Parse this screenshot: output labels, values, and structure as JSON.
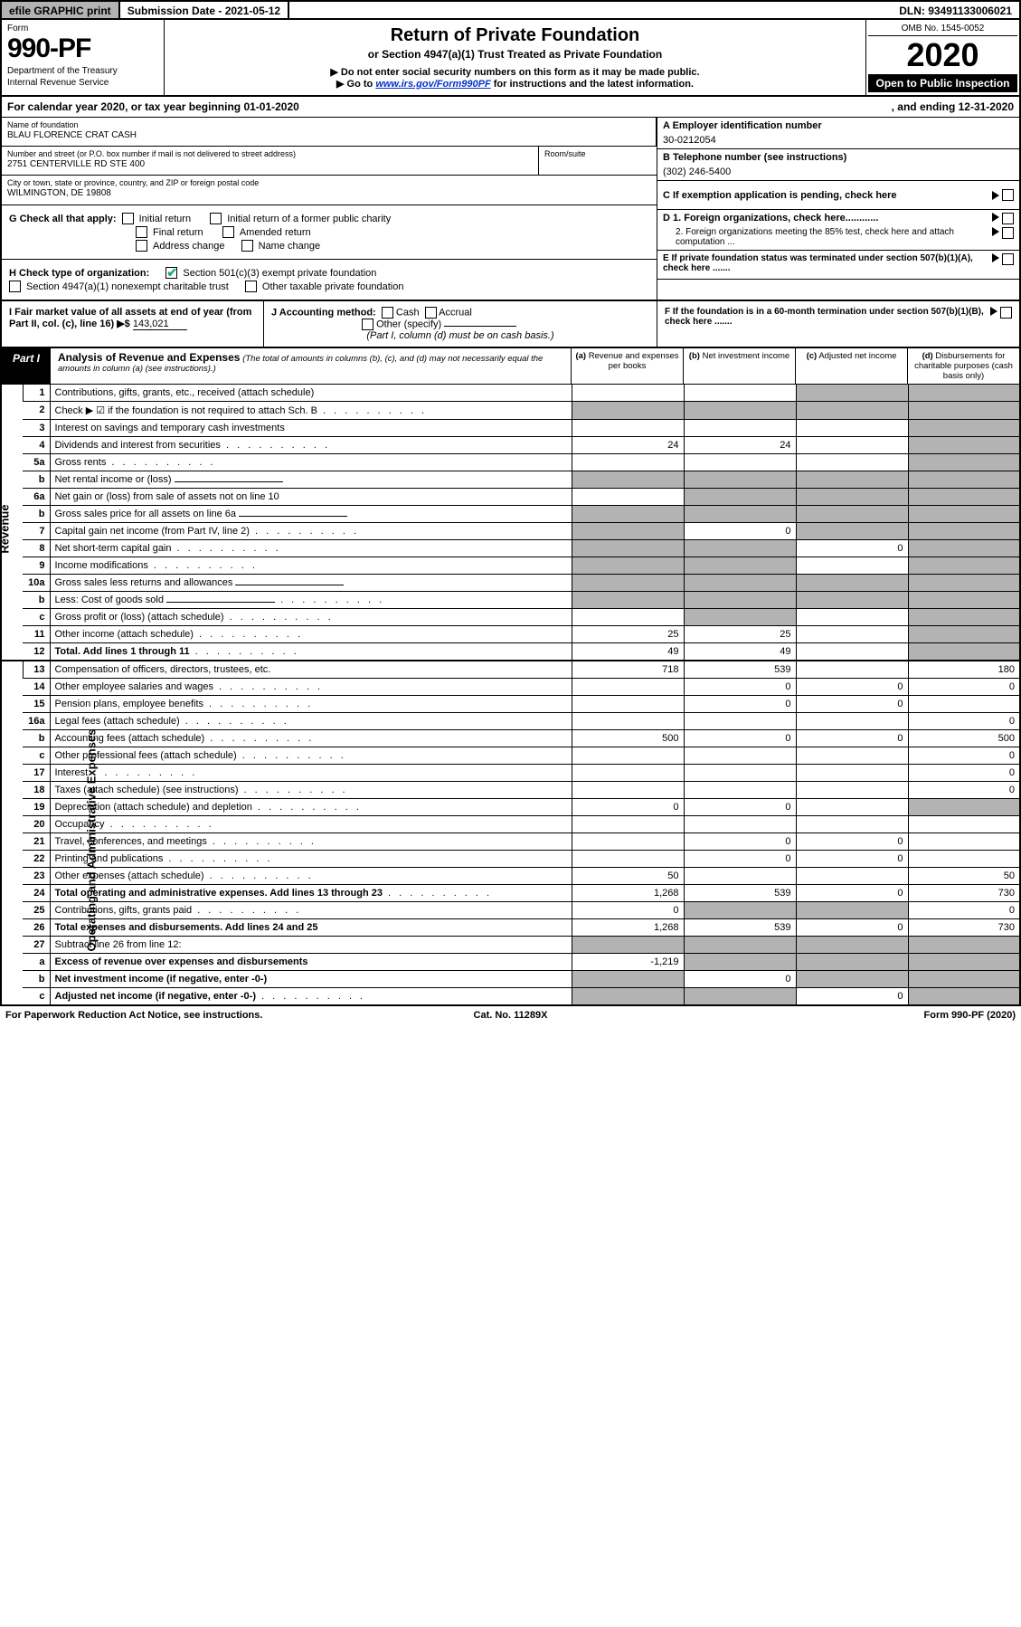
{
  "topbar": {
    "efile": "efile GRAPHIC print",
    "submission": "Submission Date - 2021-05-12",
    "dln": "DLN: 93491133006021"
  },
  "header": {
    "form_label": "Form",
    "form_num": "990-PF",
    "dept": "Department of the Treasury",
    "irs": "Internal Revenue Service",
    "title": "Return of Private Foundation",
    "subtitle": "or Section 4947(a)(1) Trust Treated as Private Foundation",
    "warn1": "▶ Do not enter social security numbers on this form as it may be made public.",
    "warn2_pre": "▶ Go to ",
    "warn2_link": "www.irs.gov/Form990PF",
    "warn2_post": " for instructions and the latest information.",
    "omb": "OMB No. 1545-0052",
    "year": "2020",
    "open": "Open to Public Inspection"
  },
  "cal": {
    "prefix": "For calendar year 2020, or tax year beginning 01-01-2020",
    "suffix": ", and ending 12-31-2020"
  },
  "foundation": {
    "name_lbl": "Name of foundation",
    "name": "BLAU FLORENCE CRAT CASH",
    "addr_lbl": "Number and street (or P.O. box number if mail is not delivered to street address)",
    "addr": "2751 CENTERVILLE RD STE 400",
    "room_lbl": "Room/suite",
    "city_lbl": "City or town, state or province, country, and ZIP or foreign postal code",
    "city": "WILMINGTON, DE  19808"
  },
  "right": {
    "a_lbl": "A Employer identification number",
    "a_val": "30-0212054",
    "b_lbl": "B Telephone number (see instructions)",
    "b_val": "(302) 246-5400",
    "c_lbl": "C If exemption application is pending, check here",
    "d1": "D 1. Foreign organizations, check here............",
    "d2": "2. Foreign organizations meeting the 85% test, check here and attach computation ...",
    "e": "E  If private foundation status was terminated under section 507(b)(1)(A), check here .......",
    "f": "F  If the foundation is in a 60-month termination under section 507(b)(1)(B), check here ......."
  },
  "g": {
    "label": "G Check all that apply:",
    "opts": [
      "Initial return",
      "Final return",
      "Address change",
      "Initial return of a former public charity",
      "Amended return",
      "Name change"
    ]
  },
  "h": {
    "label": "H Check type of organization:",
    "opt1": "Section 501(c)(3) exempt private foundation",
    "opt2": "Section 4947(a)(1) nonexempt charitable trust",
    "opt3": "Other taxable private foundation"
  },
  "i": {
    "label": "I Fair market value of all assets at end of year (from Part II, col. (c), line 16) ▶$",
    "val": "143,021"
  },
  "j": {
    "label": "J Accounting method:",
    "cash": "Cash",
    "accrual": "Accrual",
    "other": "Other (specify)",
    "note": "(Part I, column (d) must be on cash basis.)"
  },
  "part1": {
    "label": "Part I",
    "title": "Analysis of Revenue and Expenses",
    "note": "(The total of amounts in columns (b), (c), and (d) may not necessarily equal the amounts in column (a) (see instructions).)",
    "col_a": "(a)",
    "col_a2": "Revenue and expenses per books",
    "col_b": "(b)",
    "col_b2": "Net investment income",
    "col_c": "(c)",
    "col_c2": "Adjusted net income",
    "col_d": "(d)",
    "col_d2": "Disbursements for charitable purposes (cash basis only)"
  },
  "sections": {
    "revenue": "Revenue",
    "expenses": "Operating and Administrative Expenses"
  },
  "rows": [
    {
      "n": "1",
      "d": "Contributions, gifts, grants, etc., received (attach schedule)",
      "a": "",
      "b": "",
      "c": "g",
      "dv": "g"
    },
    {
      "n": "2",
      "d": "Check ▶ ☑ if the foundation is not required to attach Sch. B",
      "a": "g",
      "b": "g",
      "c": "g",
      "dv": "g",
      "dots": 1
    },
    {
      "n": "3",
      "d": "Interest on savings and temporary cash investments",
      "a": "",
      "b": "",
      "c": "",
      "dv": "g"
    },
    {
      "n": "4",
      "d": "Dividends and interest from securities",
      "a": "24",
      "b": "24",
      "c": "",
      "dv": "g",
      "dots": 1
    },
    {
      "n": "5a",
      "d": "Gross rents",
      "a": "",
      "b": "",
      "c": "",
      "dv": "g",
      "dots": 1
    },
    {
      "n": "b",
      "d": "Net rental income or (loss)",
      "a": "g",
      "b": "g",
      "c": "g",
      "dv": "g",
      "ul": 1
    },
    {
      "n": "6a",
      "d": "Net gain or (loss) from sale of assets not on line 10",
      "a": "",
      "b": "g",
      "c": "g",
      "dv": "g"
    },
    {
      "n": "b",
      "d": "Gross sales price for all assets on line 6a",
      "a": "g",
      "b": "g",
      "c": "g",
      "dv": "g",
      "ul": 1
    },
    {
      "n": "7",
      "d": "Capital gain net income (from Part IV, line 2)",
      "a": "g",
      "b": "0",
      "c": "g",
      "dv": "g",
      "dots": 1
    },
    {
      "n": "8",
      "d": "Net short-term capital gain",
      "a": "g",
      "b": "g",
      "c": "0",
      "dv": "g",
      "dots": 1
    },
    {
      "n": "9",
      "d": "Income modifications",
      "a": "g",
      "b": "g",
      "c": "",
      "dv": "g",
      "dots": 1
    },
    {
      "n": "10a",
      "d": "Gross sales less returns and allowances",
      "a": "g",
      "b": "g",
      "c": "g",
      "dv": "g",
      "ul": 1
    },
    {
      "n": "b",
      "d": "Less: Cost of goods sold",
      "a": "g",
      "b": "g",
      "c": "g",
      "dv": "g",
      "ul": 1,
      "dots": 1
    },
    {
      "n": "c",
      "d": "Gross profit or (loss) (attach schedule)",
      "a": "",
      "b": "g",
      "c": "",
      "dv": "g",
      "dots": 1
    },
    {
      "n": "11",
      "d": "Other income (attach schedule)",
      "a": "25",
      "b": "25",
      "c": "",
      "dv": "g",
      "dots": 1
    },
    {
      "n": "12",
      "d": "Total. Add lines 1 through 11",
      "a": "49",
      "b": "49",
      "c": "",
      "dv": "g",
      "bold": 1,
      "dots": 1
    }
  ],
  "exp_rows": [
    {
      "n": "13",
      "d": "Compensation of officers, directors, trustees, etc.",
      "a": "718",
      "b": "539",
      "c": "",
      "dv": "180"
    },
    {
      "n": "14",
      "d": "Other employee salaries and wages",
      "a": "",
      "b": "0",
      "c": "0",
      "dv": "0",
      "dots": 1
    },
    {
      "n": "15",
      "d": "Pension plans, employee benefits",
      "a": "",
      "b": "0",
      "c": "0",
      "dv": "",
      "dots": 1
    },
    {
      "n": "16a",
      "d": "Legal fees (attach schedule)",
      "a": "",
      "b": "",
      "c": "",
      "dv": "0",
      "dots": 1
    },
    {
      "n": "b",
      "d": "Accounting fees (attach schedule)",
      "a": "500",
      "b": "0",
      "c": "0",
      "dv": "500",
      "dots": 1
    },
    {
      "n": "c",
      "d": "Other professional fees (attach schedule)",
      "a": "",
      "b": "",
      "c": "",
      "dv": "0",
      "dots": 1
    },
    {
      "n": "17",
      "d": "Interest",
      "a": "",
      "b": "",
      "c": "",
      "dv": "0",
      "dots": 1
    },
    {
      "n": "18",
      "d": "Taxes (attach schedule) (see instructions)",
      "a": "",
      "b": "",
      "c": "",
      "dv": "0",
      "dots": 1
    },
    {
      "n": "19",
      "d": "Depreciation (attach schedule) and depletion",
      "a": "0",
      "b": "0",
      "c": "",
      "dv": "g",
      "dots": 1
    },
    {
      "n": "20",
      "d": "Occupancy",
      "a": "",
      "b": "",
      "c": "",
      "dv": "",
      "dots": 1
    },
    {
      "n": "21",
      "d": "Travel, conferences, and meetings",
      "a": "",
      "b": "0",
      "c": "0",
      "dv": "",
      "dots": 1
    },
    {
      "n": "22",
      "d": "Printing and publications",
      "a": "",
      "b": "0",
      "c": "0",
      "dv": "",
      "dots": 1
    },
    {
      "n": "23",
      "d": "Other expenses (attach schedule)",
      "a": "50",
      "b": "",
      "c": "",
      "dv": "50",
      "dots": 1
    },
    {
      "n": "24",
      "d": "Total operating and administrative expenses. Add lines 13 through 23",
      "a": "1,268",
      "b": "539",
      "c": "0",
      "dv": "730",
      "bold": 1,
      "dots": 1
    },
    {
      "n": "25",
      "d": "Contributions, gifts, grants paid",
      "a": "0",
      "b": "g",
      "c": "g",
      "dv": "0",
      "dots": 1
    },
    {
      "n": "26",
      "d": "Total expenses and disbursements. Add lines 24 and 25",
      "a": "1,268",
      "b": "539",
      "c": "0",
      "dv": "730",
      "bold": 1
    },
    {
      "n": "27",
      "d": "Subtract line 26 from line 12:",
      "a": "g",
      "b": "g",
      "c": "g",
      "dv": "g"
    },
    {
      "n": "a",
      "d": "Excess of revenue over expenses and disbursements",
      "a": "-1,219",
      "b": "g",
      "c": "g",
      "dv": "g",
      "bold": 1
    },
    {
      "n": "b",
      "d": "Net investment income (if negative, enter -0-)",
      "a": "g",
      "b": "0",
      "c": "g",
      "dv": "g",
      "bold": 1
    },
    {
      "n": "c",
      "d": "Adjusted net income (if negative, enter -0-)",
      "a": "g",
      "b": "g",
      "c": "0",
      "dv": "g",
      "bold": 1,
      "dots": 1
    }
  ],
  "footer": {
    "l": "For Paperwork Reduction Act Notice, see instructions.",
    "c": "Cat. No. 11289X",
    "r": "Form 990-PF (2020)"
  }
}
